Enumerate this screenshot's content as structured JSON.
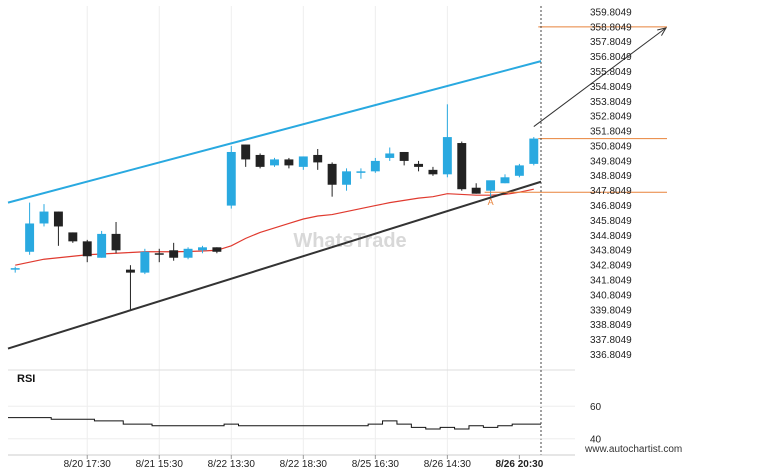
{
  "chart_data": {
    "type": "candlestick",
    "watermark": "WhatsTrade",
    "site": "www.autochartist.com",
    "rsi_title": "RSI",
    "y_ticks": [
      "359.8049",
      "358.8049",
      "357.8049",
      "356.8049",
      "355.8049",
      "354.8049",
      "353.8049",
      "352.8049",
      "351.8049",
      "350.8049",
      "349.8049",
      "348.8049",
      "347.8049",
      "346.8049",
      "345.8049",
      "344.8049",
      "343.8049",
      "342.8049",
      "341.8049",
      "340.8049",
      "339.8049",
      "338.8049",
      "337.8049",
      "336.8049"
    ],
    "y_range": [
      336.3,
      360.2
    ],
    "x_labels": [
      {
        "i": 5,
        "label": "8/20 17:30"
      },
      {
        "i": 10,
        "label": "8/21 15:30"
      },
      {
        "i": 15,
        "label": "8/22 13:30"
      },
      {
        "i": 20,
        "label": "8/22 18:30"
      },
      {
        "i": 25,
        "label": "8/25 16:30"
      },
      {
        "i": 30,
        "label": "8/26 14:30"
      },
      {
        "i": 35,
        "label": "8/26 20:30",
        "bold": true
      }
    ],
    "candles": [
      {
        "o": 342.5,
        "h": 342.7,
        "l": 342.3,
        "c": 342.6
      },
      {
        "o": 343.7,
        "h": 347.0,
        "l": 343.5,
        "c": 345.6
      },
      {
        "o": 345.6,
        "h": 346.9,
        "l": 345.4,
        "c": 346.4
      },
      {
        "o": 346.4,
        "h": 346.4,
        "l": 344.1,
        "c": 345.4
      },
      {
        "o": 345.0,
        "h": 345.0,
        "l": 344.3,
        "c": 344.4
      },
      {
        "o": 344.4,
        "h": 344.5,
        "l": 343.0,
        "c": 343.4
      },
      {
        "o": 343.3,
        "h": 345.1,
        "l": 343.3,
        "c": 344.9
      },
      {
        "o": 344.9,
        "h": 345.7,
        "l": 343.6,
        "c": 343.8
      },
      {
        "o": 342.5,
        "h": 342.8,
        "l": 339.8,
        "c": 342.3
      },
      {
        "o": 342.3,
        "h": 343.9,
        "l": 342.2,
        "c": 343.7
      },
      {
        "o": 343.6,
        "h": 343.9,
        "l": 343.0,
        "c": 343.5
      },
      {
        "o": 343.8,
        "h": 344.3,
        "l": 343.1,
        "c": 343.3
      },
      {
        "o": 343.3,
        "h": 344.0,
        "l": 343.2,
        "c": 343.9
      },
      {
        "o": 343.8,
        "h": 344.1,
        "l": 343.6,
        "c": 344.0
      },
      {
        "o": 344.0,
        "h": 344.0,
        "l": 343.6,
        "c": 343.7
      },
      {
        "o": 346.8,
        "h": 350.8,
        "l": 346.6,
        "c": 350.4
      },
      {
        "o": 350.9,
        "h": 350.9,
        "l": 349.4,
        "c": 349.9
      },
      {
        "o": 350.2,
        "h": 350.3,
        "l": 349.3,
        "c": 349.4
      },
      {
        "o": 349.5,
        "h": 350.0,
        "l": 349.4,
        "c": 349.9
      },
      {
        "o": 349.9,
        "h": 350.0,
        "l": 349.3,
        "c": 349.5
      },
      {
        "o": 349.4,
        "h": 350.1,
        "l": 349.2,
        "c": 350.1
      },
      {
        "o": 350.2,
        "h": 350.6,
        "l": 349.2,
        "c": 349.7
      },
      {
        "o": 349.6,
        "h": 349.7,
        "l": 347.4,
        "c": 348.2
      },
      {
        "o": 348.2,
        "h": 349.3,
        "l": 347.8,
        "c": 349.1
      },
      {
        "o": 349.0,
        "h": 349.3,
        "l": 348.6,
        "c": 349.1
      },
      {
        "o": 349.1,
        "h": 350.0,
        "l": 349.0,
        "c": 349.8
      },
      {
        "o": 350.0,
        "h": 350.7,
        "l": 349.8,
        "c": 350.3
      },
      {
        "o": 350.4,
        "h": 350.4,
        "l": 349.5,
        "c": 349.8
      },
      {
        "o": 349.6,
        "h": 349.8,
        "l": 349.1,
        "c": 349.4
      },
      {
        "o": 349.2,
        "h": 349.4,
        "l": 348.8,
        "c": 348.9
      },
      {
        "o": 348.9,
        "h": 353.6,
        "l": 348.7,
        "c": 351.4
      },
      {
        "o": 351.0,
        "h": 351.1,
        "l": 347.8,
        "c": 347.9
      },
      {
        "o": 348.0,
        "h": 348.3,
        "l": 347.6,
        "c": 347.6
      },
      {
        "o": 347.8,
        "h": 348.4,
        "l": 347.4,
        "c": 348.5
      },
      {
        "o": 348.3,
        "h": 348.9,
        "l": 348.3,
        "c": 348.7
      },
      {
        "o": 348.8,
        "h": 349.6,
        "l": 348.7,
        "c": 349.5
      },
      {
        "o": 349.6,
        "h": 351.4,
        "l": 349.5,
        "c": 351.3
      }
    ],
    "ma_series": [
      342.8,
      343.0,
      343.2,
      343.3,
      343.4,
      343.5,
      343.55,
      343.6,
      343.65,
      343.7,
      343.7,
      343.7,
      343.72,
      343.75,
      343.8,
      344.1,
      344.6,
      345.0,
      345.3,
      345.6,
      345.9,
      346.1,
      346.2,
      346.4,
      346.6,
      346.8,
      347.0,
      347.15,
      347.3,
      347.4,
      347.6,
      347.55,
      347.5,
      347.5,
      347.55,
      347.7,
      347.9
    ],
    "resistance_line": {
      "from": {
        "i": -0.5,
        "v": 347.0
      },
      "to": {
        "i": 36.5,
        "v": 356.5
      }
    },
    "support_line": {
      "from": {
        "i": -0.5,
        "v": 337.2
      },
      "to": {
        "i": 36.5,
        "v": 348.4
      }
    },
    "target_level": 358.8,
    "entry_level": 351.3,
    "breakout_level": 347.7,
    "point_label": "A",
    "point_index": 33,
    "rsi_ticks": [
      60,
      40
    ],
    "rsi_range": [
      30,
      70
    ],
    "rsi_series": [
      53,
      53,
      53,
      52,
      52,
      52,
      51,
      51,
      49,
      49,
      48,
      48,
      48,
      48,
      48,
      49,
      48,
      48,
      48,
      48,
      48,
      48,
      48,
      48,
      48,
      49,
      51,
      49,
      47,
      46,
      47,
      46,
      48,
      47,
      48,
      49,
      49
    ]
  },
  "colors": {
    "bull": "#29a9e0",
    "bear": "#222222",
    "resistance": "#29a9e0",
    "support": "#333333",
    "ma": "#e03a2f",
    "level": "#e8823a"
  }
}
